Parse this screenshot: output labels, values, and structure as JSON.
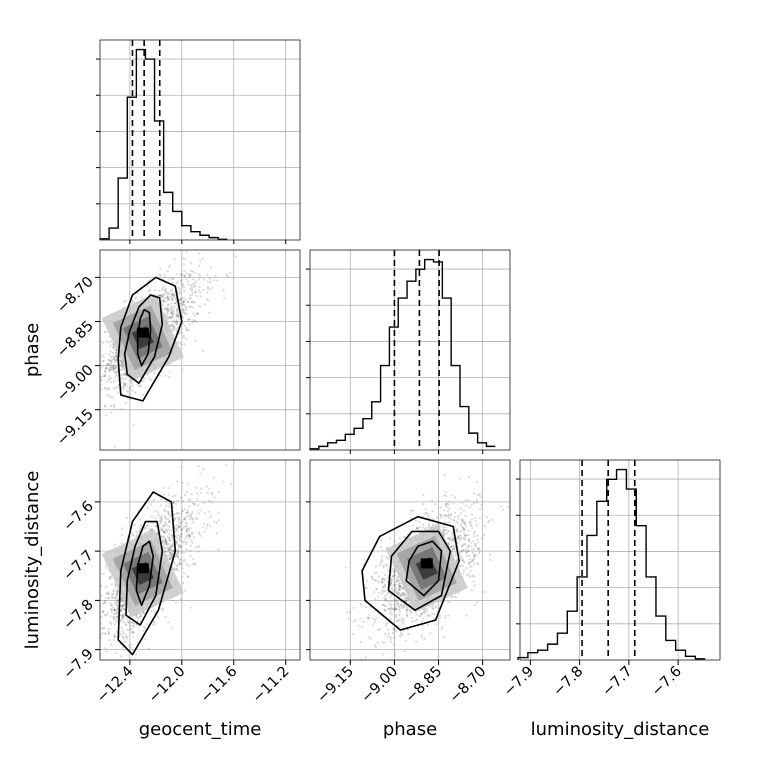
{
  "chart_data": {
    "type": "corner",
    "title": "",
    "parameters": [
      "geocent_time",
      "phase",
      "luminosity_distance"
    ],
    "axes": {
      "geocent_time": {
        "range": [
          -12.63,
          -11.09
        ],
        "ticks": [
          -12.4,
          -12.0,
          -11.6,
          -11.2
        ],
        "tick_labels": [
          "−12.4",
          "−12.0",
          "−11.6",
          "−11.2"
        ]
      },
      "phase": {
        "range": [
          -9.287,
          -8.607
        ],
        "ticks": [
          -9.15,
          -9.0,
          -8.85,
          -8.7
        ],
        "tick_labels": [
          "−9.15",
          "−9.00",
          "−8.85",
          "−8.70"
        ]
      },
      "luminosity_distance": {
        "range": [
          -7.921,
          -7.515
        ],
        "ticks": [
          -7.9,
          -7.8,
          -7.7,
          -7.6
        ],
        "tick_labels": [
          "−7.9",
          "−7.8",
          "−7.7",
          "−7.6"
        ]
      }
    },
    "histograms": [
      {
        "parameter": "geocent_time",
        "bin_edges": [
          -12.63,
          -12.56,
          -12.49,
          -12.42,
          -12.35,
          -12.28,
          -12.21,
          -12.14,
          -12.07,
          -12.0,
          -11.93,
          -11.86,
          -11.79,
          -11.72,
          -11.65
        ],
        "counts": [
          0.5,
          5,
          26,
          60,
          80,
          76,
          50,
          20,
          12,
          6,
          3.5,
          2,
          1,
          0.3
        ],
        "quantiles": [
          -12.38,
          -12.29,
          -12.17
        ]
      },
      {
        "parameter": "phase",
        "bin_edges": [
          -9.287,
          -9.257,
          -9.227,
          -9.197,
          -9.167,
          -9.137,
          -9.107,
          -9.077,
          -9.047,
          -9.017,
          -8.987,
          -8.957,
          -8.927,
          -8.897,
          -8.867,
          -8.837,
          -8.807,
          -8.777,
          -8.747,
          -8.717,
          -8.687,
          -8.657
        ],
        "counts": [
          0.5,
          1.5,
          3,
          4,
          6.5,
          9,
          13,
          20,
          35,
          51,
          63,
          70,
          75,
          79,
          78,
          63,
          35,
          18,
          7,
          3,
          1.5
        ],
        "quantiles": [
          -9.0,
          -8.915,
          -8.848
        ]
      },
      {
        "parameter": "luminosity_distance",
        "bin_edges": [
          -7.925,
          -7.905,
          -7.885,
          -7.865,
          -7.845,
          -7.825,
          -7.805,
          -7.785,
          -7.765,
          -7.745,
          -7.725,
          -7.705,
          -7.685,
          -7.665,
          -7.645,
          -7.625,
          -7.605,
          -7.585,
          -7.565,
          -7.545
        ],
        "counts": [
          1,
          3,
          4,
          6.5,
          11,
          20,
          34,
          51,
          65,
          74,
          78,
          70,
          55,
          34,
          18,
          8,
          4,
          1.5,
          0.5
        ],
        "quantiles": [
          -7.795,
          -7.742,
          -7.688
        ]
      }
    ],
    "pairs": [
      {
        "x": "geocent_time",
        "y": "phase",
        "center": [
          -12.3,
          -8.905
        ],
        "sigma": [
          0.14,
          0.085
        ],
        "rho": 0.55,
        "contours": [
          [
            [
              -12.34,
              -8.96
            ],
            [
              -12.31,
              -9.0
            ],
            [
              -12.26,
              -8.96
            ],
            [
              -12.24,
              -8.88
            ],
            [
              -12.25,
              -8.82
            ],
            [
              -12.29,
              -8.81
            ],
            [
              -12.32,
              -8.84
            ],
            [
              -12.34,
              -8.9
            ]
          ],
          [
            [
              -12.42,
              -9.03
            ],
            [
              -12.33,
              -9.06
            ],
            [
              -12.21,
              -8.97
            ],
            [
              -12.15,
              -8.86
            ],
            [
              -12.17,
              -8.77
            ],
            [
              -12.24,
              -8.76
            ],
            [
              -12.33,
              -8.8
            ],
            [
              -12.4,
              -8.88
            ],
            [
              -12.44,
              -8.96
            ]
          ],
          [
            [
              -12.47,
              -9.1
            ],
            [
              -12.3,
              -9.12
            ],
            [
              -12.1,
              -8.97
            ],
            [
              -12.0,
              -8.85
            ],
            [
              -12.05,
              -8.73
            ],
            [
              -12.2,
              -8.7
            ],
            [
              -12.38,
              -8.76
            ],
            [
              -12.47,
              -8.87
            ],
            [
              -12.49,
              -8.98
            ]
          ]
        ]
      },
      {
        "x": "geocent_time",
        "y": "luminosity_distance",
        "center": [
          -12.3,
          -7.745
        ],
        "sigma": [
          0.14,
          0.06
        ],
        "rho": 0.6,
        "contours": [
          [
            [
              -12.35,
              -7.78
            ],
            [
              -12.31,
              -7.81
            ],
            [
              -12.25,
              -7.77
            ],
            [
              -12.22,
              -7.71
            ],
            [
              -12.25,
              -7.68
            ],
            [
              -12.3,
              -7.69
            ],
            [
              -12.34,
              -7.73
            ]
          ],
          [
            [
              -12.43,
              -7.83
            ],
            [
              -12.32,
              -7.85
            ],
            [
              -12.2,
              -7.79
            ],
            [
              -12.15,
              -7.7
            ],
            [
              -12.19,
              -7.64
            ],
            [
              -12.28,
              -7.64
            ],
            [
              -12.36,
              -7.69
            ],
            [
              -12.42,
              -7.76
            ]
          ],
          [
            [
              -12.49,
              -7.88
            ],
            [
              -12.38,
              -7.91
            ],
            [
              -12.18,
              -7.82
            ],
            [
              -12.05,
              -7.7
            ],
            [
              -12.08,
              -7.6
            ],
            [
              -12.22,
              -7.58
            ],
            [
              -12.38,
              -7.64
            ],
            [
              -12.47,
              -7.74
            ]
          ]
        ]
      },
      {
        "x": "phase",
        "y": "luminosity_distance",
        "center": [
          -8.89,
          -7.735
        ],
        "sigma": [
          0.085,
          0.06
        ],
        "rho": 0.55,
        "contours": [
          [
            [
              -8.96,
              -7.76
            ],
            [
              -8.9,
              -7.79
            ],
            [
              -8.85,
              -7.76
            ],
            [
              -8.84,
              -7.7
            ],
            [
              -8.87,
              -7.68
            ],
            [
              -8.92,
              -7.69
            ],
            [
              -8.95,
              -7.72
            ]
          ],
          [
            [
              -9.02,
              -7.78
            ],
            [
              -8.93,
              -7.82
            ],
            [
              -8.84,
              -7.79
            ],
            [
              -8.81,
              -7.7
            ],
            [
              -8.85,
              -7.66
            ],
            [
              -8.94,
              -7.66
            ],
            [
              -9.01,
              -7.71
            ]
          ],
          [
            [
              -9.1,
              -7.8
            ],
            [
              -8.98,
              -7.86
            ],
            [
              -8.86,
              -7.84
            ],
            [
              -8.78,
              -7.72
            ],
            [
              -8.8,
              -7.65
            ],
            [
              -8.92,
              -7.63
            ],
            [
              -9.05,
              -7.67
            ],
            [
              -9.11,
              -7.74
            ]
          ]
        ]
      }
    ],
    "grid": true
  }
}
